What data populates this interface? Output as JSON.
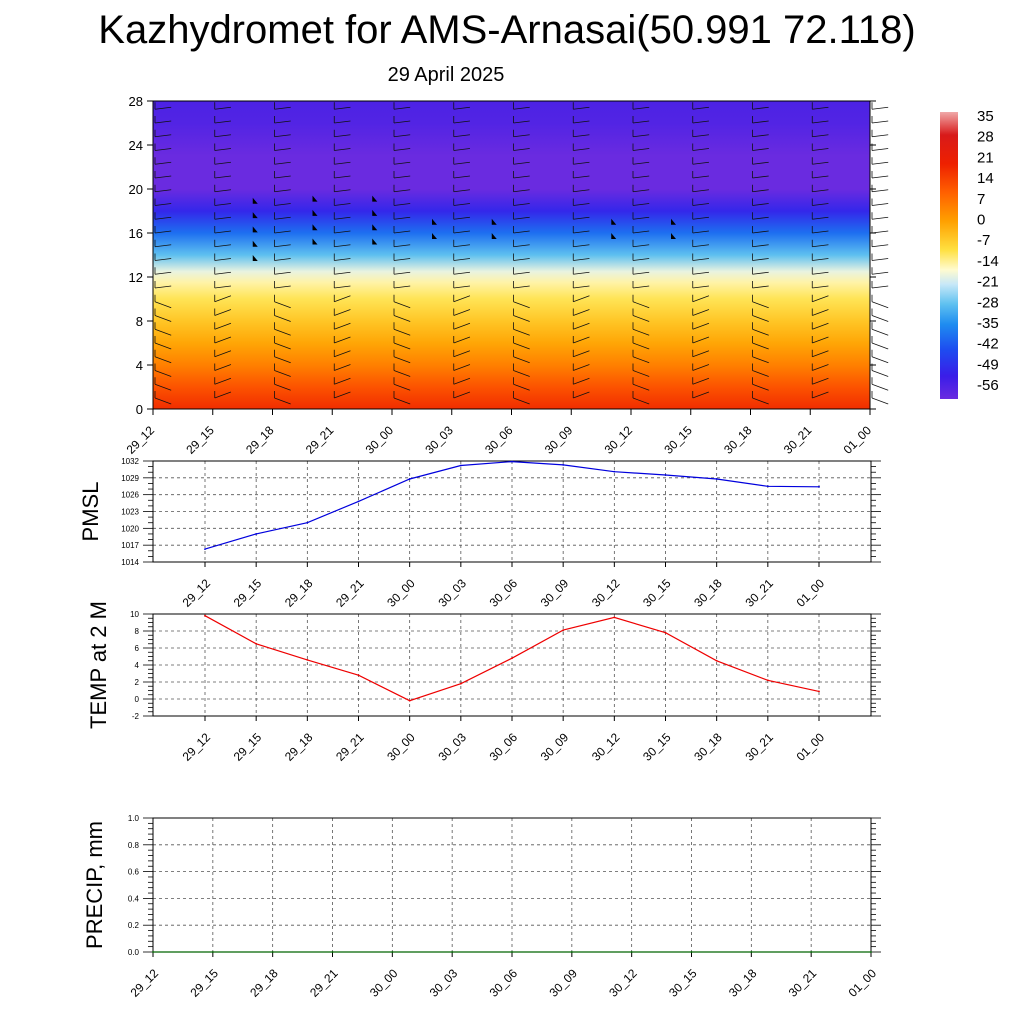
{
  "title": "Kazhydromet for AMS-Arnasai(50.991 72.118)",
  "subtitle": "29 April 2025",
  "colors": {
    "pmsl_line": "#0000dd",
    "temp_line": "#ee0000",
    "precip_line": "#006400",
    "grid": "#555555"
  },
  "chart_data": [
    {
      "type": "heatmap",
      "name": "vertical cross-section",
      "y_ticks": [
        "0",
        "4",
        "8",
        "12",
        "16",
        "20",
        "24",
        "28"
      ],
      "ylim": [
        0,
        28
      ],
      "x_ticks": [
        "29_12",
        "29_15",
        "29_18",
        "29_21",
        "30_00",
        "30_03",
        "30_06",
        "30_09",
        "30_12",
        "30_15",
        "30_18",
        "30_21",
        "01_00"
      ],
      "colorbar_labels": [
        "35",
        "28",
        "21",
        "14",
        "7",
        "0",
        "-7",
        "-14",
        "-21",
        "-28",
        "-35",
        "-42",
        "-49",
        "-56"
      ],
      "colorbar_range": [
        -60,
        38
      ],
      "field_profile": [
        {
          "y": 0,
          "value": 20
        },
        {
          "y": 2,
          "value": 14
        },
        {
          "y": 4,
          "value": 7
        },
        {
          "y": 6,
          "value": 1
        },
        {
          "y": 8,
          "value": -4
        },
        {
          "y": 10,
          "value": -9
        },
        {
          "y": 11.5,
          "value": -13
        },
        {
          "y": 12.5,
          "value": -17
        },
        {
          "y": 14,
          "value": -27
        },
        {
          "y": 16,
          "value": -38
        },
        {
          "y": 18,
          "value": -50
        },
        {
          "y": 20,
          "value": -60
        },
        {
          "y": 23,
          "value": -60
        },
        {
          "y": 26,
          "value": -56
        },
        {
          "y": 28,
          "value": -55
        }
      ]
    },
    {
      "type": "line",
      "ylabel": "PMSL",
      "y_ticks": [
        "1014",
        "1017",
        "1020",
        "1023",
        "1026",
        "1029",
        "1032"
      ],
      "ylim": [
        1014,
        1032
      ],
      "x_ticks": [
        "29_12",
        "29_15",
        "29_18",
        "29_21",
        "30_00",
        "30_03",
        "30_06",
        "30_09",
        "30_12",
        "30_15",
        "30_18",
        "30_21",
        "01_00"
      ],
      "values": [
        1016.3,
        1019.0,
        1021.0,
        1024.8,
        1028.8,
        1031.2,
        1031.9,
        1031.3,
        1030.1,
        1029.5,
        1028.8,
        1027.5,
        1027.4
      ]
    },
    {
      "type": "line",
      "ylabel": "TEMP at 2 M",
      "y_ticks": [
        "-2",
        "0",
        "2",
        "4",
        "6",
        "8",
        "10"
      ],
      "ylim": [
        -2,
        10
      ],
      "x_ticks": [
        "29_12",
        "29_15",
        "29_18",
        "29_21",
        "30_00",
        "30_03",
        "30_06",
        "30_09",
        "30_12",
        "30_15",
        "30_18",
        "30_21",
        "01_00"
      ],
      "values": [
        9.8,
        6.5,
        4.6,
        2.8,
        -0.2,
        1.8,
        4.8,
        8.1,
        9.6,
        7.8,
        4.5,
        2.2,
        0.9
      ]
    },
    {
      "type": "line",
      "ylabel": "PRECIP, mm",
      "y_ticks": [
        "0.0",
        "0.2",
        "0.4",
        "0.6",
        "0.8",
        "1.0"
      ],
      "ylim": [
        0,
        1
      ],
      "x_ticks": [
        "29_12",
        "29_15",
        "29_18",
        "29_21",
        "30_00",
        "30_03",
        "30_06",
        "30_09",
        "30_12",
        "30_15",
        "30_18",
        "30_21",
        "01_00"
      ],
      "values": [
        0,
        0,
        0,
        0,
        0,
        0,
        0,
        0,
        0,
        0,
        0,
        0,
        0
      ]
    }
  ]
}
